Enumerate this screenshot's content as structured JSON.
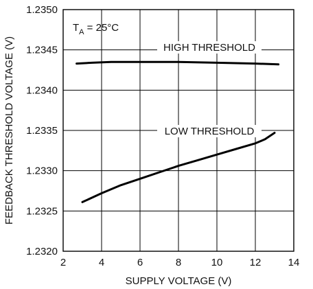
{
  "chart_data": {
    "type": "line",
    "xlabel": "SUPPLY VOLTAGE (V)",
    "ylabel": "FEEDBACK THRESHOLD VOLTAGE (V)",
    "xlim": [
      2,
      14
    ],
    "ylim": [
      1.232,
      1.235
    ],
    "xticks": [
      2,
      4,
      6,
      8,
      10,
      12,
      14
    ],
    "yticks": [
      "1.2320",
      "1.2325",
      "1.2330",
      "1.2335",
      "1.2340",
      "1.2345",
      "1.2350"
    ],
    "grid": true,
    "condition": {
      "main": "T",
      "sub": "A",
      "rest": " = 25°C"
    },
    "series": [
      {
        "name": "HIGH THRESHOLD",
        "x": [
          2.7,
          3.5,
          4.5,
          6,
          8,
          10,
          12,
          13.2
        ],
        "y": [
          1.23433,
          1.23434,
          1.23435,
          1.23435,
          1.23435,
          1.23434,
          1.23433,
          1.23432
        ]
      },
      {
        "name": "LOW THRESHOLD",
        "x": [
          3,
          4,
          5,
          6,
          7,
          8,
          9,
          10,
          11,
          12,
          12.5,
          13
        ],
        "y": [
          1.23261,
          1.23272,
          1.23282,
          1.2329,
          1.23298,
          1.23306,
          1.23313,
          1.2332,
          1.23327,
          1.23334,
          1.23339,
          1.23347
        ]
      }
    ]
  }
}
